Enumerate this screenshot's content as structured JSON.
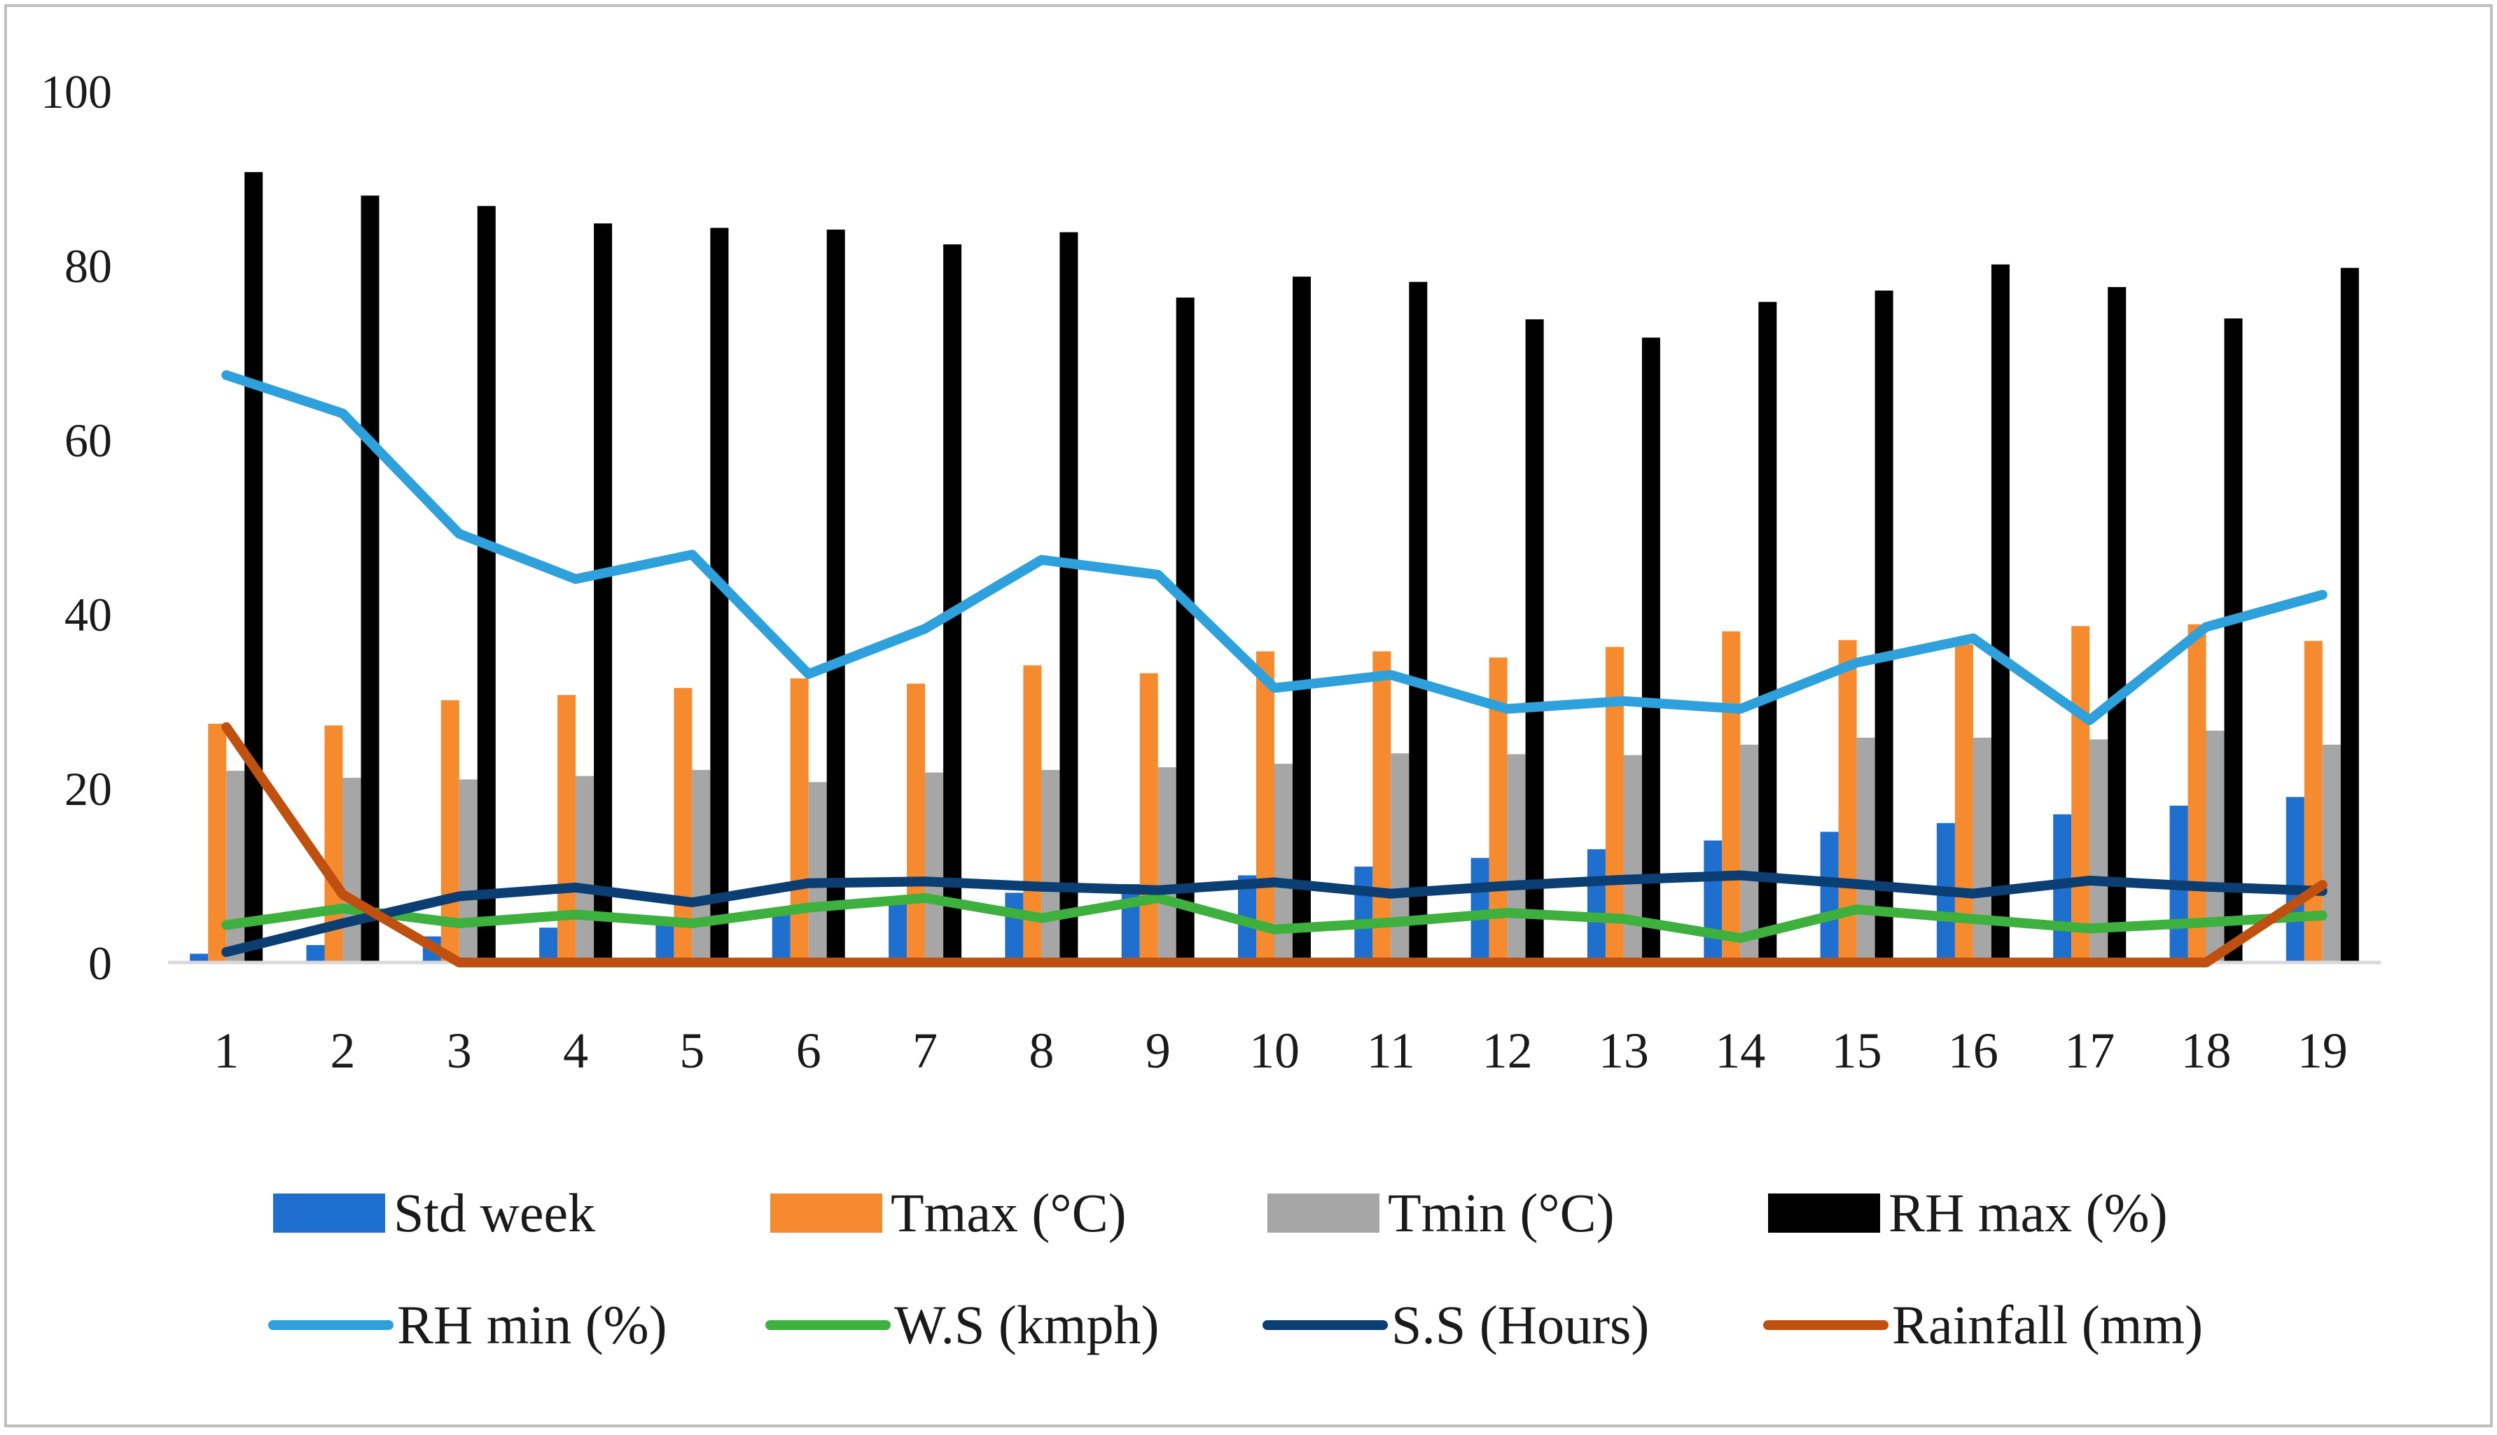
{
  "chart_data": {
    "type": "bar",
    "title": "",
    "xlabel": "",
    "ylabel": "",
    "ylim": [
      0,
      100
    ],
    "yticks": [
      "0",
      "20",
      "40",
      "60",
      "80",
      "100"
    ],
    "categories": [
      "1",
      "2",
      "3",
      "4",
      "5",
      "6",
      "7",
      "8",
      "9",
      "10",
      "11",
      "12",
      "13",
      "14",
      "15",
      "16",
      "17",
      "18",
      "19"
    ],
    "bar_series": [
      {
        "name": "Std week",
        "color": "#1f6fcf",
        "values": [
          1,
          2,
          3,
          4,
          5,
          6,
          7,
          8,
          9,
          10,
          11,
          12,
          13,
          14,
          15,
          16,
          17,
          18,
          19
        ]
      },
      {
        "name": "Tmax (°C)",
        "color": "#f58a2f",
        "values": [
          27.4,
          27.2,
          30.1,
          30.7,
          31.5,
          32.6,
          32.0,
          34.1,
          33.2,
          35.7,
          35.7,
          35.0,
          36.2,
          38.0,
          37.0,
          36.5,
          38.6,
          38.8,
          36.9
        ]
      },
      {
        "name": "Tmin (°C)",
        "color": "#a6a6a6",
        "values": [
          22.0,
          21.2,
          21.0,
          21.4,
          22.1,
          20.7,
          21.8,
          22.1,
          22.4,
          22.8,
          24.0,
          23.9,
          23.8,
          25.0,
          25.8,
          25.8,
          25.6,
          26.6,
          25.0
        ]
      },
      {
        "name": "RH max (%)",
        "color": "#000000",
        "values": [
          90.7,
          88.0,
          86.8,
          84.8,
          84.3,
          84.1,
          82.4,
          83.8,
          76.3,
          78.7,
          78.1,
          73.8,
          71.7,
          75.8,
          77.1,
          80.1,
          77.5,
          73.9,
          79.7
        ]
      }
    ],
    "line_series": [
      {
        "name": "RH min (%)",
        "color": "#2ea1dc",
        "values": [
          67.4,
          63.0,
          49.2,
          44.0,
          46.8,
          33.1,
          38.3,
          46.2,
          44.5,
          31.5,
          33.0,
          29.1,
          30.0,
          29.1,
          34.4,
          37.2,
          27.8,
          38.5,
          42.2
        ]
      },
      {
        "name": "W.S (kmph)",
        "color": "#3db03d",
        "values": [
          4.3,
          6.2,
          4.5,
          5.5,
          4.5,
          6.3,
          7.4,
          5.1,
          7.4,
          3.8,
          4.6,
          5.7,
          5.0,
          2.8,
          6.1,
          5.0,
          3.9,
          4.6,
          5.4
        ]
      },
      {
        "name": "S.S (Hours)",
        "color": "#0b3e72",
        "values": [
          1.2,
          4.5,
          7.6,
          8.6,
          6.9,
          9.1,
          9.3,
          8.7,
          8.3,
          9.2,
          7.9,
          8.8,
          9.5,
          10.0,
          9.0,
          7.9,
          9.4,
          8.7,
          8.2
        ]
      },
      {
        "name": "Rainfall (mm)",
        "color": "#c0500f",
        "values": [
          27.0,
          7.8,
          0,
          0,
          0,
          0,
          0,
          0,
          0,
          0,
          0,
          0,
          0,
          0,
          0,
          0,
          0,
          0,
          8.9
        ]
      }
    ],
    "grid": false,
    "legend": "bottom"
  }
}
